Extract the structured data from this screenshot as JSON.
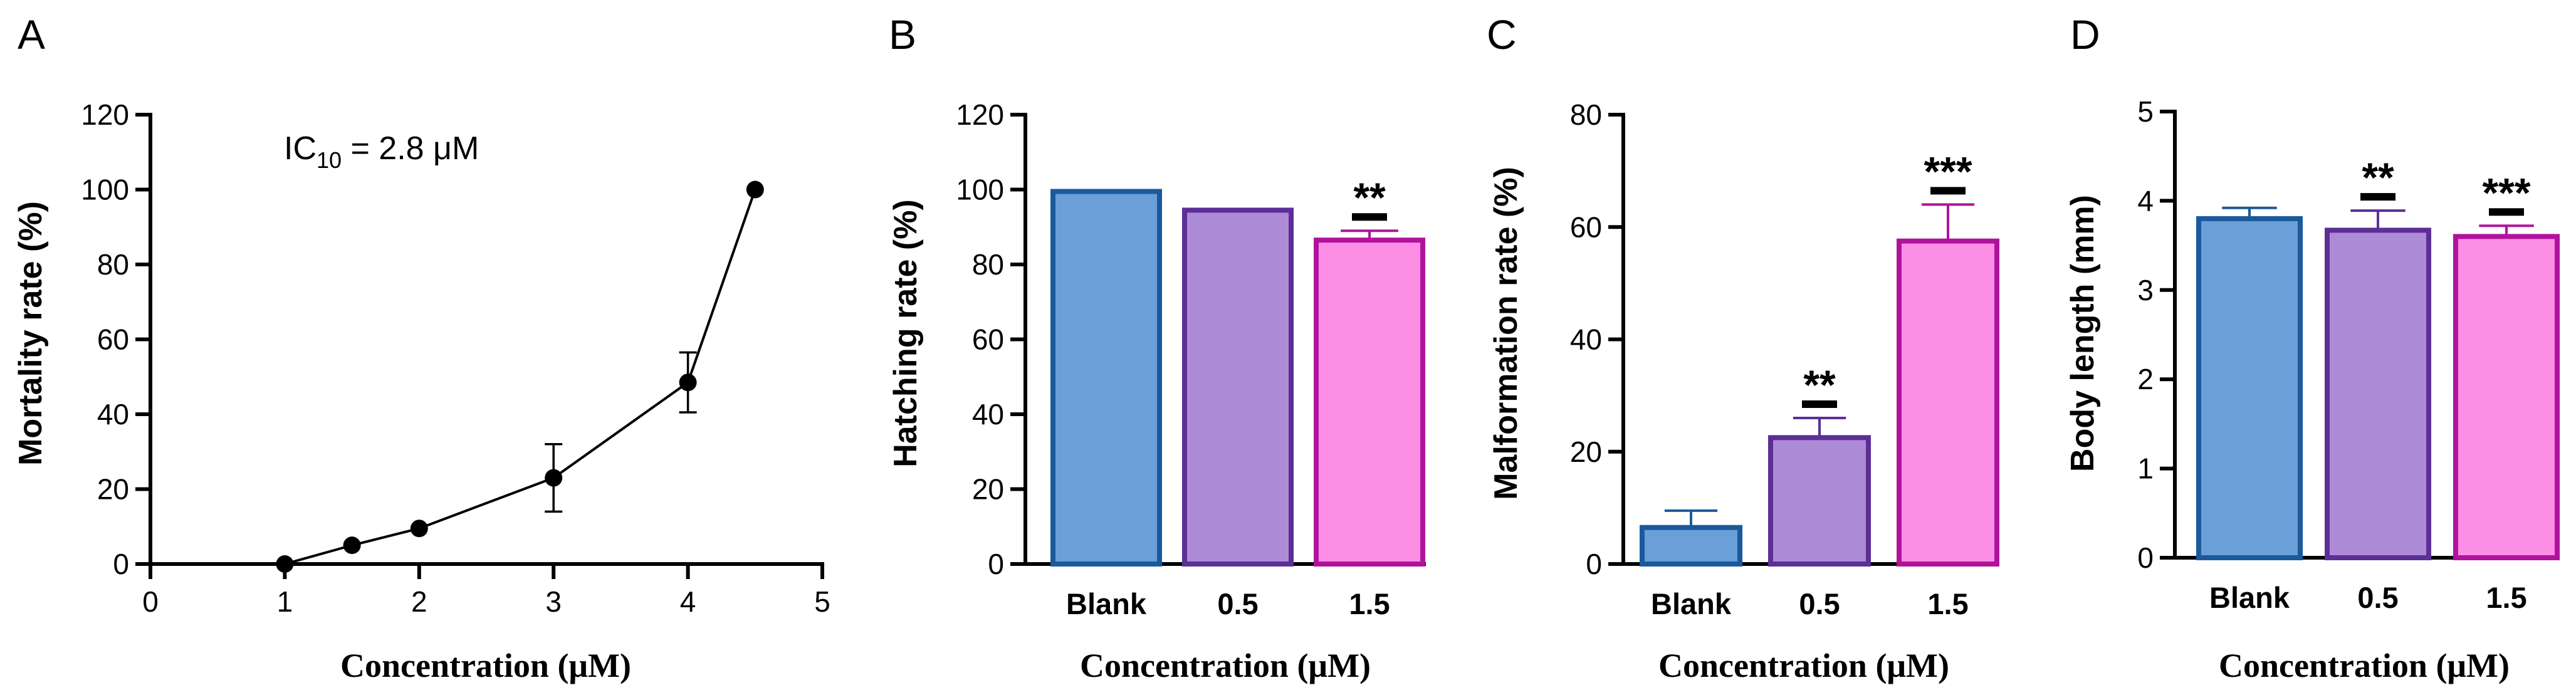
{
  "chart_data": [
    {
      "panel": "A",
      "type": "line",
      "xlabel": "Concentration (μM)",
      "ylabel": "Mortality rate (%)",
      "xlim": [
        0,
        5
      ],
      "ylim": [
        0,
        120
      ],
      "xticks": [
        "0",
        "1",
        "2",
        "3",
        "4",
        "5"
      ],
      "yticks": [
        "0",
        "20",
        "40",
        "60",
        "80",
        "100",
        "120"
      ],
      "annotation": {
        "prefix": "IC",
        "subscript": "10",
        "suffix": " = 2.8 μM"
      },
      "series": [
        {
          "name": "Mortality",
          "x": [
            1,
            1.5,
            2,
            3,
            4,
            4.5
          ],
          "values": [
            0,
            5,
            9.5,
            23,
            48.5,
            100
          ],
          "error": [
            0,
            0,
            0,
            9,
            8,
            0
          ]
        }
      ]
    },
    {
      "panel": "B",
      "type": "bar",
      "xlabel": "Concentration (μM)",
      "ylabel": "Hatching rate (%)",
      "ylim": [
        0,
        120
      ],
      "yticks": [
        "0",
        "20",
        "40",
        "60",
        "80",
        "100",
        "120"
      ],
      "categories": [
        "Blank",
        "0.5",
        "1.5"
      ],
      "values": [
        99.5,
        94.5,
        86.5
      ],
      "error": [
        0,
        0,
        2.5
      ],
      "significance": [
        "",
        "",
        "**"
      ]
    },
    {
      "panel": "C",
      "type": "bar",
      "xlabel": "Concentration (μM)",
      "ylabel": "Malformation rate (%)",
      "ylim": [
        0,
        80
      ],
      "yticks": [
        "0",
        "20",
        "40",
        "60",
        "80"
      ],
      "categories": [
        "Blank",
        "0.5",
        "1.5"
      ],
      "values": [
        6.5,
        22.5,
        57.5
      ],
      "error": [
        3,
        3.5,
        6.5
      ],
      "significance": [
        "",
        "**",
        "***"
      ]
    },
    {
      "panel": "D",
      "type": "bar",
      "xlabel": "Concentration (μM)",
      "ylabel": "Body length (mm)",
      "ylim": [
        0,
        5
      ],
      "yticks": [
        "0",
        "1",
        "2",
        "3",
        "4",
        "5"
      ],
      "categories": [
        "Blank",
        "0.5",
        "1.5"
      ],
      "values": [
        3.8,
        3.67,
        3.6
      ],
      "error": [
        0.12,
        0.22,
        0.12
      ],
      "significance": [
        "",
        "**",
        "***"
      ]
    }
  ],
  "style": {
    "bar_fills": [
      "#6a9fd8",
      "#ad8bd6",
      "#fc8ee6"
    ],
    "bar_strokes": [
      "#1a5a9c",
      "#5c2e96",
      "#b0139b"
    ],
    "line_color": "#000000"
  }
}
